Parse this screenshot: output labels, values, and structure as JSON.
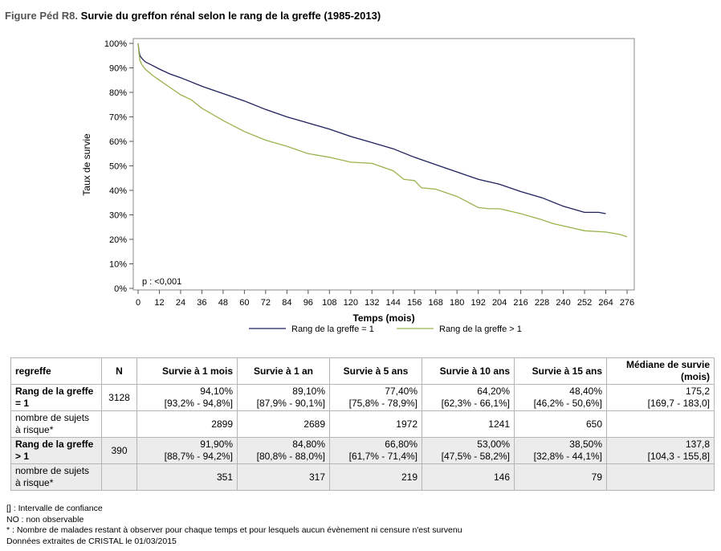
{
  "figure": {
    "label": "Figure Péd R8.",
    "title": "Survie du greffon rénal selon le rang de la greffe (1985-2013)"
  },
  "chart_data": {
    "type": "line",
    "xlabel": "Temps (mois)",
    "ylabel": "Taux de survie",
    "xlim": [
      0,
      276
    ],
    "ylim": [
      0,
      100
    ],
    "x_ticks": [
      0,
      12,
      24,
      36,
      48,
      60,
      72,
      84,
      96,
      108,
      120,
      132,
      144,
      156,
      168,
      180,
      192,
      204,
      216,
      228,
      240,
      252,
      264,
      276
    ],
    "y_ticks": [
      "0%",
      "10%",
      "20%",
      "30%",
      "40%",
      "50%",
      "60%",
      "70%",
      "80%",
      "90%",
      "100%"
    ],
    "annotation": "p : <0,001",
    "legend_placement": "bottom",
    "series": [
      {
        "name": "Rang de la greffe = 1",
        "color": "#1f1f5e",
        "x": [
          0,
          0.5,
          1,
          2,
          4,
          8,
          12,
          18,
          24,
          36,
          48,
          60,
          72,
          84,
          96,
          108,
          120,
          132,
          144,
          156,
          168,
          180,
          192,
          204,
          216,
          228,
          240,
          252,
          260,
          264
        ],
        "y": [
          100,
          97,
          95,
          94,
          92.5,
          91,
          89.5,
          87.5,
          86,
          82.5,
          79.5,
          76.5,
          73,
          70,
          67.5,
          65,
          62,
          59.5,
          57,
          53.5,
          50.5,
          47.5,
          44.5,
          42.5,
          39.5,
          37,
          33.5,
          31,
          31,
          30.5
        ]
      },
      {
        "name": "Rang de la greffe > 1",
        "color": "#99b34d",
        "x": [
          0,
          0.5,
          1,
          2,
          4,
          8,
          12,
          18,
          24,
          30,
          36,
          48,
          60,
          72,
          84,
          96,
          108,
          120,
          132,
          144,
          150,
          156,
          160,
          168,
          180,
          192,
          198,
          204,
          216,
          228,
          234,
          240,
          252,
          264,
          272,
          276
        ],
        "y": [
          100,
          96,
          93,
          91.5,
          89.5,
          87,
          85,
          82,
          79,
          77,
          73.5,
          68.5,
          64,
          60.5,
          58,
          55,
          53.5,
          51.5,
          51,
          48,
          44.5,
          44,
          41,
          40.5,
          37.5,
          33,
          32.5,
          32.5,
          30.5,
          28,
          26.5,
          25.5,
          23.5,
          23,
          22,
          21
        ]
      }
    ]
  },
  "table": {
    "headers": [
      "regreffe",
      "N",
      "Survie à 1 mois",
      "Survie à 1 an",
      "Survie à 5 ans",
      "Survie à 10 ans",
      "Survie à 15 ans",
      "Médiane de survie (mois)"
    ],
    "rows": [
      {
        "label": "Rang de la greffe = 1",
        "n": "3128",
        "cells": [
          [
            "94,10%",
            "[93,2% - 94,8%]"
          ],
          [
            "89,10%",
            "[87,9% - 90,1%]"
          ],
          [
            "77,40%",
            "[75,8% - 78,9%]"
          ],
          [
            "64,20%",
            "[62,3% - 66,1%]"
          ],
          [
            "48,40%",
            "[46,2% - 50,6%]"
          ],
          [
            "175,2",
            "[169,7 - 183,0]"
          ]
        ]
      },
      {
        "label": "nombre de sujets à risque*",
        "n": "",
        "cells": [
          "2899",
          "2689",
          "1972",
          "1241",
          "650",
          ""
        ]
      },
      {
        "label": "Rang de la greffe > 1",
        "n": "390",
        "cells": [
          [
            "91,90%",
            "[88,7% - 94,2%]"
          ],
          [
            "84,80%",
            "[80,8% - 88,0%]"
          ],
          [
            "66,80%",
            "[61,7% - 71,4%]"
          ],
          [
            "53,00%",
            "[47,5% - 58,2%]"
          ],
          [
            "38,50%",
            "[32,8% - 44,1%]"
          ],
          [
            "137,8",
            "[104,3 - 155,8]"
          ]
        ]
      },
      {
        "label": "nombre de sujets à risque*",
        "n": "",
        "cells": [
          "351",
          "317",
          "219",
          "146",
          "79",
          ""
        ]
      }
    ]
  },
  "notes": [
    "[] : Intervalle de confiance",
    "NO : non observable",
    "* : Nombre de malades restant à observer pour chaque temps et pour lesquels aucun évènement ni censure n'est survenu",
    "Données extraites de CRISTAL le 01/03/2015"
  ]
}
